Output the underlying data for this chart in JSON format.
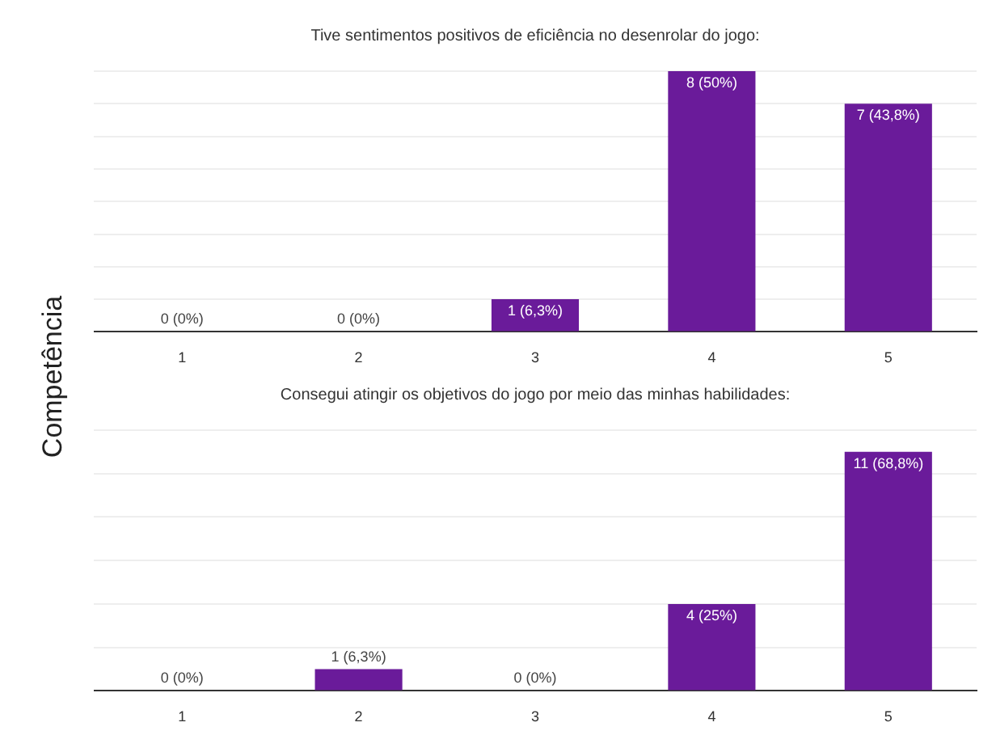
{
  "chart_data": [
    {
      "type": "bar",
      "title": "Tive sentimentos positivos de eficiência no desenrolar do jogo:",
      "ylabel": "Competência",
      "categories": [
        "1",
        "2",
        "3",
        "4",
        "5"
      ],
      "values": [
        0,
        0,
        1,
        8,
        7
      ],
      "color": "#6a1b9a",
      "value_labels": [
        "0 (0%)",
        "0 (0%)",
        "1 (6,3%)",
        "8 (50%)",
        "7 (43,8%)"
      ],
      "grid": "y",
      "tick_labels": "x"
    },
    {
      "type": "bar",
      "title": "Consegui atingir os objetivos do jogo por meio das minhas habilidades:",
      "categories": [
        "1",
        "2",
        "3",
        "4",
        "5"
      ],
      "values": [
        0,
        1,
        0,
        4,
        11
      ],
      "color": "#6a1b9a",
      "value_labels": [
        "0 (0%)",
        "1 (6,3%)",
        "0 (0%)",
        "4 (25%)",
        "11 (68,8%)"
      ],
      "grid": "y",
      "tick_labels": "x"
    }
  ]
}
